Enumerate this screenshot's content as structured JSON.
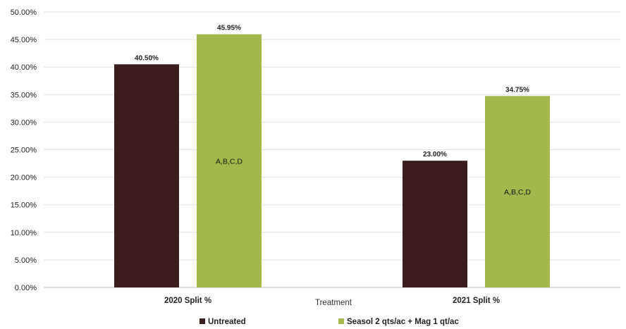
{
  "chart_data": {
    "type": "bar",
    "categories": [
      "2020 Split %",
      "2021 Split %"
    ],
    "xlabel": "Treatment",
    "ylabel": "",
    "ylim": [
      0,
      0.5
    ],
    "y_ticks": [
      "0.00%",
      "5.00%",
      "10.00%",
      "15.00%",
      "20.00%",
      "25.00%",
      "30.00%",
      "35.00%",
      "40.00%",
      "45.00%",
      "50.00%"
    ],
    "grid": true,
    "legend_position": "bottom",
    "series": [
      {
        "name": "Untreated",
        "color": "#3d1c1e",
        "values": [
          0.405,
          0.23
        ],
        "data_labels": [
          "40.50%",
          "23.00%"
        ],
        "inner_labels": [
          "",
          ""
        ]
      },
      {
        "name": "Seasol 2 qts/ac + Mag 1 qt/ac",
        "color": "#a2b84a",
        "values": [
          0.4595,
          0.3475
        ],
        "data_labels": [
          "45.95%",
          "34.75%"
        ],
        "inner_labels": [
          "A,B,C,D",
          "A,B,C,D"
        ]
      }
    ]
  }
}
